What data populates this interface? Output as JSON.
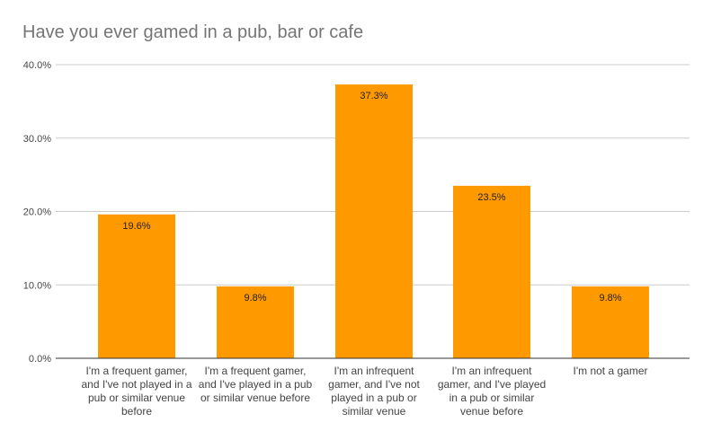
{
  "chart_data": {
    "type": "bar",
    "title": "Have you ever gamed in a pub, bar or cafe",
    "categories": [
      "I'm a frequent gamer, and I've not played in a pub or similar venue before",
      "I'm a frequent gamer, and I've played in a pub or similar venue before",
      "I'm an infrequent gamer, and I've not played in a pub or similar venue",
      "I'm an infrequent gamer, and I've played in a pub or similar venue before",
      "I'm not a gamer"
    ],
    "values": [
      19.6,
      9.8,
      37.3,
      23.5,
      9.8
    ],
    "value_labels": [
      "19.6%",
      "9.8%",
      "37.3%",
      "23.5%",
      "9.8%"
    ],
    "ylim": [
      0,
      40
    ],
    "yticks": [
      "0.0%",
      "10.0%",
      "20.0%",
      "30.0%",
      "40.0%"
    ],
    "xlabel": "",
    "ylabel": "",
    "grid": true,
    "legend": "none",
    "colors": {
      "bar": "#ff9900",
      "grid": "#cccccc",
      "axis": "#333333",
      "title": "#757575",
      "label": "#444444"
    }
  }
}
